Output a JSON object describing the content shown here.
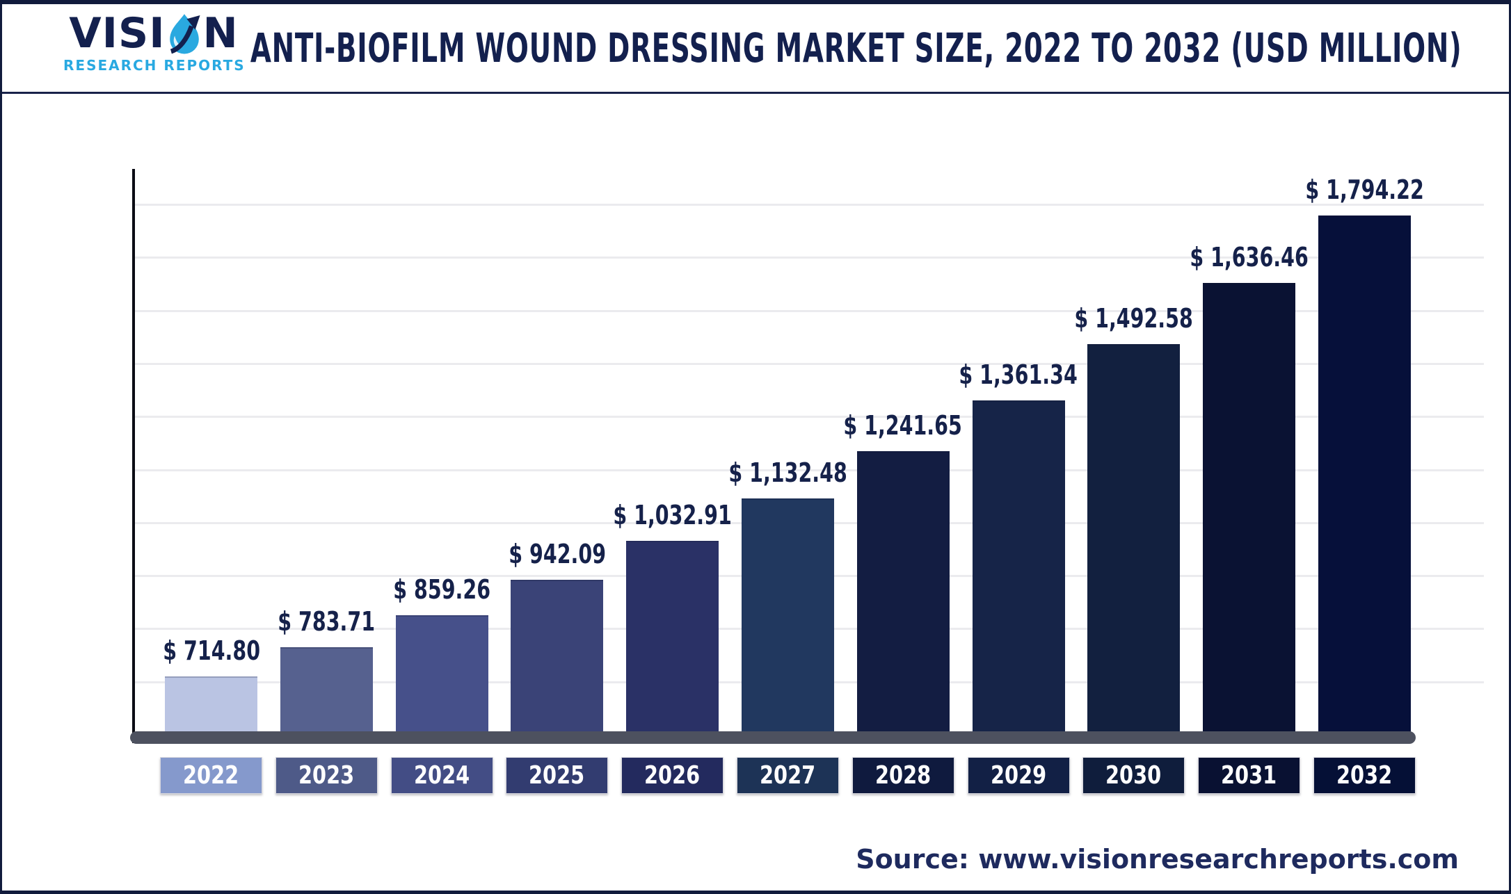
{
  "header": {
    "logo": {
      "word_full": "VISION",
      "word_start": "VISI",
      "word_end": "N",
      "subtitle": "RESEARCH REPORTS"
    },
    "title": "ANTI-BIOFILM WOUND DRESSING MARKET SIZE, 2022 TO 2032 (USD MILLION)"
  },
  "chart_data": {
    "type": "bar",
    "title": "Anti-Biofilm Wound Dressing Market Size, 2022 to 2032 (USD Million)",
    "unit": "USD Million",
    "categories": [
      "2022",
      "2023",
      "2024",
      "2025",
      "2026",
      "2027",
      "2028",
      "2029",
      "2030",
      "2031",
      "2032"
    ],
    "values": [
      714.8,
      783.71,
      859.26,
      942.09,
      1032.91,
      1132.48,
      1241.65,
      1361.34,
      1492.58,
      1636.46,
      1794.22
    ],
    "value_labels": [
      "$ 714.80",
      "$ 783.71",
      "$ 859.26",
      "$ 942.09",
      "$ 1,032.91",
      "$ 1,132.48",
      "$ 1,241.65",
      "$ 1,361.34",
      "$ 1,492.58",
      "$ 1,636.46",
      "$ 1,794.22"
    ],
    "bar_colors": [
      "#bac4e3",
      "#56618f",
      "#46508a",
      "#3a4377",
      "#2a3166",
      "#21385f",
      "#131d42",
      "#162448",
      "#12203f",
      "#0a1233",
      "#06103a"
    ],
    "tick_box_colors": [
      "#8599cc",
      "#4e5a88",
      "#434d85",
      "#323c70",
      "#232a5e",
      "#1d3356",
      "#0f1a3e",
      "#122045",
      "#0f1d3c",
      "#091132",
      "#051036"
    ],
    "value_label_color": "#15214a",
    "grid": "horizontal",
    "legend": "none",
    "y_axis_tick_labels": "none visible (values shown as data labels above bars)",
    "baseline_value_estimate": 574,
    "grid_step_value_estimate": 124
  },
  "footer": {
    "source": "Source: www.visionresearchreports.com"
  },
  "colors": {
    "frame_navy": "#111b3c",
    "title_navy": "#13204e",
    "logo_blue": "#29a9e1",
    "axis_bar_gray": "#4d515f",
    "gridline": "#ebebee",
    "y_axis_line": "#0b0c14"
  }
}
